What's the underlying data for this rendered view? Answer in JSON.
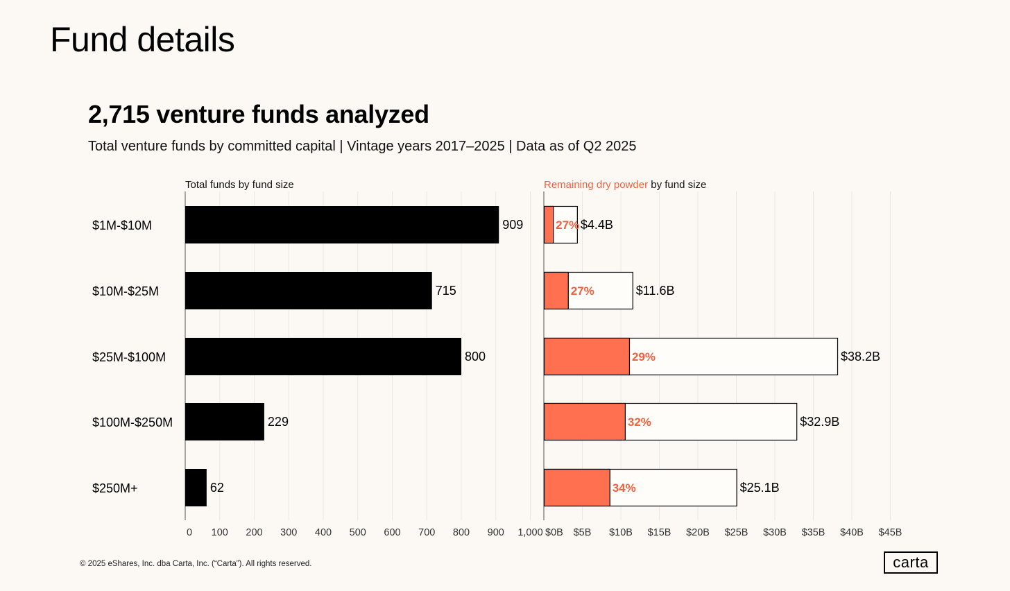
{
  "page": {
    "title": "Fund details",
    "headline": "2,715 venture funds analyzed",
    "subtitle": "Total venture funds by committed capital | Vintage years 2017–2025 | Data as of Q2 2025",
    "footer": "© 2025 eShares, Inc. dba Carta, Inc. (“Carta”). All rights reserved.",
    "logo": "carta"
  },
  "colors": {
    "background": "#fcf9f4",
    "bar_black": "#000000",
    "accent": "#ff7050",
    "accent_text": "#f2603f",
    "gridline": "#ece7e0",
    "axis": "#555555"
  },
  "chart_data": [
    {
      "type": "bar",
      "orientation": "horizontal",
      "title": "Total funds by fund size",
      "categories": [
        "$1M-$10M",
        "$10M-$25M",
        "$25M-$100M",
        "$100M-$250M",
        "$250M+"
      ],
      "values": [
        909,
        715,
        800,
        229,
        62
      ],
      "value_labels": [
        "909",
        "715",
        "800",
        "229",
        "62"
      ],
      "xlim": [
        0,
        1000
      ],
      "ticks": [
        0,
        100,
        200,
        300,
        400,
        500,
        600,
        700,
        800,
        900,
        1000
      ],
      "tick_labels": [
        "0",
        "100",
        "200",
        "300",
        "400",
        "500",
        "600",
        "700",
        "800",
        "900",
        "1,000"
      ],
      "grid": true
    },
    {
      "type": "bar",
      "orientation": "horizontal",
      "title_highlight": "Remaining dry powder",
      "title_rest": " by fund size",
      "categories": [
        "$1M-$10M",
        "$10M-$25M",
        "$25M-$100M",
        "$100M-$250M",
        "$250M+"
      ],
      "totals": [
        4.4,
        11.6,
        38.2,
        32.9,
        25.1
      ],
      "total_labels": [
        "$4.4B",
        "$11.6B",
        "$38.2B",
        "$32.9B",
        "$25.1B"
      ],
      "dry_powder_pct": [
        27,
        27,
        29,
        32,
        34
      ],
      "pct_labels": [
        "27%",
        "27%",
        "29%",
        "32%",
        "34%"
      ],
      "xlim": [
        0,
        45
      ],
      "ticks": [
        0,
        5,
        10,
        15,
        20,
        25,
        30,
        35,
        40,
        45
      ],
      "tick_labels": [
        "$0B",
        "$5B",
        "$10B",
        "$15B",
        "$20B",
        "$25B",
        "$30B",
        "$35B",
        "$40B",
        "$45B"
      ],
      "grid": true
    }
  ]
}
